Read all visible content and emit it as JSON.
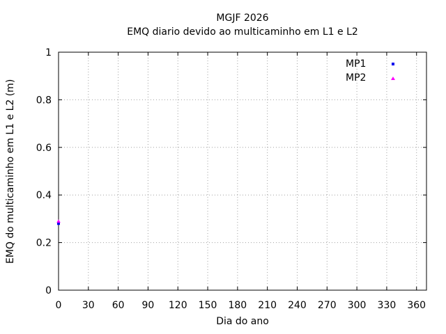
{
  "chart_data": {
    "type": "scatter",
    "title": "MGJF 2026",
    "subtitle": "EMQ diario devido ao multicaminho em L1 e L2",
    "xlabel": "Dia do ano",
    "ylabel": "EMQ do multicaminho em L1 e L2 (m)",
    "xlim": [
      0,
      370
    ],
    "ylim": [
      0,
      1
    ],
    "x_ticks": [
      0,
      30,
      60,
      90,
      120,
      150,
      180,
      210,
      240,
      270,
      300,
      330,
      360
    ],
    "x_tick_labels": [
      "0",
      "30",
      "60",
      "90",
      "120",
      "150",
      "180",
      "210",
      "240",
      "270",
      "300",
      "330",
      "360"
    ],
    "y_ticks": [
      0,
      0.2,
      0.4,
      0.6,
      0.8,
      1
    ],
    "y_tick_labels": [
      "0",
      "0.2",
      "0.4",
      "0.6",
      "0.8",
      "1"
    ],
    "grid": true,
    "legend_position": "top-right",
    "series": [
      {
        "name": "MP1",
        "color": "#0000ee",
        "marker": "square",
        "points": [
          [
            0,
            0.28
          ]
        ]
      },
      {
        "name": "MP2",
        "color": "#ff00ff",
        "marker": "triangle",
        "points": [
          [
            0,
            0.29
          ]
        ]
      }
    ],
    "colors": {
      "axis": "#000000",
      "grid": "#a0a0a0",
      "background": "#ffffff"
    }
  }
}
